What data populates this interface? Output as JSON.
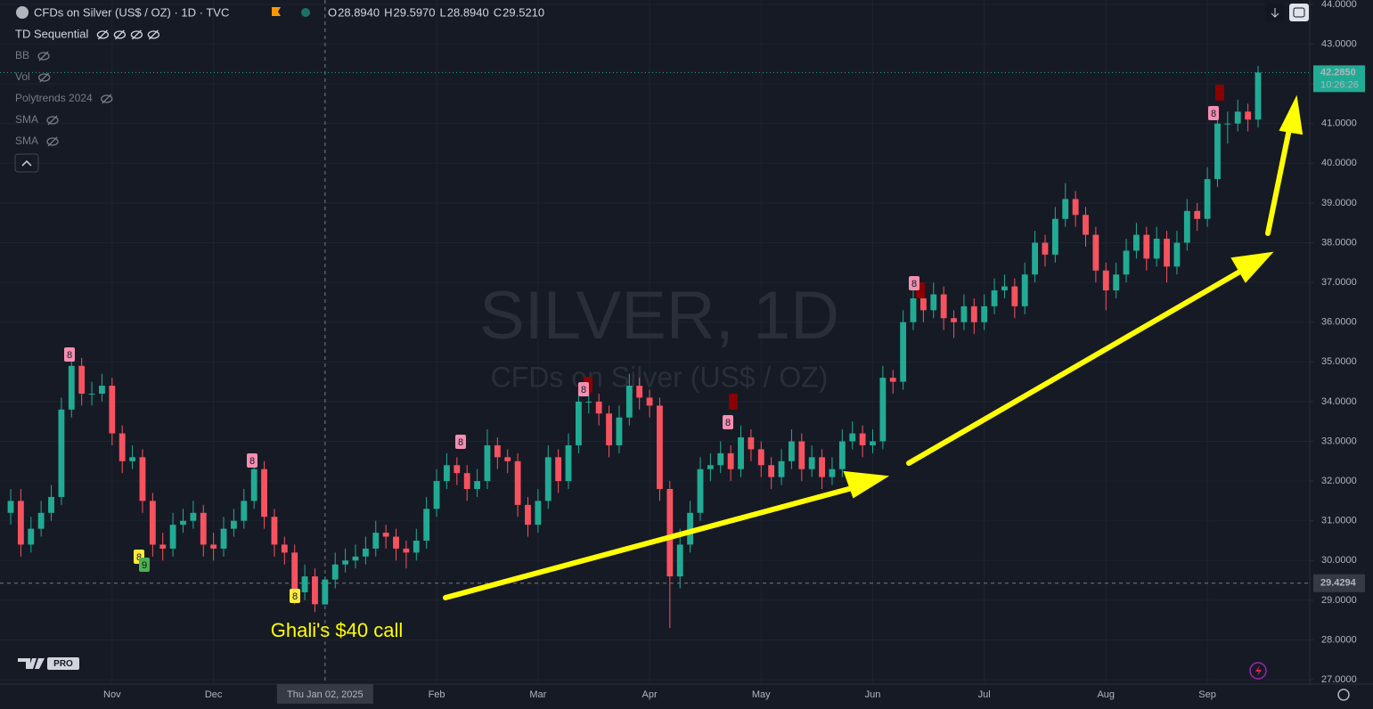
{
  "header": {
    "title": "CFDs on Silver (US$ / OZ) · 1D · TVC",
    "ohlc": [
      {
        "key": "O",
        "value": "28.8940"
      },
      {
        "key": "H",
        "value": "29.5970"
      },
      {
        "key": "L",
        "value": "28.8940"
      },
      {
        "key": "C",
        "value": "29.5210"
      }
    ],
    "indicators": [
      "TD Sequential",
      "BB",
      "Vol",
      "Polytrends 2024",
      "SMA",
      "SMA"
    ],
    "logo": "PRO"
  },
  "chart_data": {
    "type": "candlestick",
    "watermark": "SILVER, 1D",
    "watermark_subtitle": "CFDs on Silver (US$ / OZ)",
    "annotation": "Ghali's $40 call",
    "up_color": "#22ab94",
    "down_color": "#f7525f",
    "grid": true,
    "categories": [
      null,
      null,
      null,
      null,
      null,
      null,
      null,
      null,
      null,
      null,
      "Nov",
      null,
      null,
      null,
      null,
      null,
      null,
      null,
      null,
      null,
      "Dec",
      null,
      null,
      null,
      null,
      null,
      null,
      null,
      null,
      null,
      null,
      "Thu Jan 02, 2025",
      null,
      null,
      null,
      null,
      null,
      null,
      null,
      null,
      null,
      null,
      "Feb",
      null,
      null,
      null,
      null,
      null,
      null,
      null,
      null,
      null,
      "Mar",
      null,
      null,
      null,
      null,
      null,
      null,
      null,
      null,
      null,
      null,
      "Apr",
      null,
      null,
      null,
      null,
      null,
      null,
      null,
      null,
      null,
      null,
      "May",
      null,
      null,
      null,
      null,
      null,
      null,
      null,
      null,
      null,
      null,
      "Jun",
      null,
      null,
      null,
      null,
      null,
      null,
      null,
      null,
      null,
      null,
      "Jul",
      null,
      null,
      null,
      null,
      null,
      null,
      null,
      null,
      null,
      null,
      null,
      "Aug",
      null,
      null,
      null,
      null,
      null,
      null,
      null,
      null,
      null,
      "Sep",
      null,
      null,
      null,
      null,
      null
    ],
    "open": [
      31.2,
      31.5,
      30.4,
      30.8,
      31.2,
      31.6,
      33.8,
      34.9,
      34.2,
      34.2,
      34.4,
      33.2,
      32.5,
      32.6,
      31.5,
      30.4,
      30.3,
      30.9,
      31.0,
      31.2,
      30.4,
      30.3,
      30.8,
      31.0,
      31.5,
      32.3,
      31.1,
      30.4,
      30.2,
      29.2,
      29.6,
      28.894,
      29.521,
      29.9,
      30.0,
      30.1,
      30.3,
      30.7,
      30.6,
      30.3,
      30.2,
      30.5,
      31.3,
      32.0,
      32.4,
      32.2,
      31.8,
      32.0,
      32.9,
      32.6,
      32.5,
      31.4,
      30.9,
      31.5,
      32.6,
      32.0,
      32.9,
      34.0,
      34.0,
      33.7,
      32.9,
      33.6,
      34.4,
      34.1,
      33.9,
      31.8,
      29.6,
      30.4,
      31.2,
      32.3,
      32.4,
      32.7,
      32.3,
      33.1,
      32.8,
      32.4,
      32.1,
      32.5,
      33.0,
      32.3,
      32.6,
      32.1,
      32.3,
      33.0,
      33.2,
      32.9,
      33.0,
      34.6,
      34.5,
      36.0,
      36.6,
      36.3,
      36.7,
      36.1,
      36.0,
      36.4,
      36.0,
      36.4,
      36.8,
      36.9,
      36.4,
      37.2,
      38.0,
      37.7,
      38.6,
      39.1,
      38.7,
      38.2,
      37.3,
      36.8,
      37.2,
      37.8,
      38.2,
      37.6,
      38.1,
      37.4,
      38.0,
      38.8,
      38.6,
      39.6,
      41.0,
      41.0,
      41.3,
      41.1
    ],
    "high": [
      31.8,
      31.8,
      31.1,
      31.5,
      31.9,
      34.1,
      35.0,
      35.1,
      34.5,
      34.7,
      34.6,
      33.4,
      32.9,
      32.8,
      31.7,
      30.7,
      31.2,
      31.3,
      31.5,
      31.4,
      30.7,
      31.1,
      31.3,
      31.8,
      32.6,
      32.5,
      31.3,
      30.6,
      30.4,
      29.9,
      29.8,
      29.597,
      30.2,
      30.3,
      30.4,
      30.6,
      31.0,
      30.9,
      30.8,
      30.5,
      30.8,
      31.6,
      32.3,
      32.7,
      32.6,
      32.4,
      32.3,
      33.3,
      33.1,
      32.8,
      32.7,
      31.6,
      31.8,
      32.9,
      32.8,
      33.2,
      34.3,
      34.3,
      34.2,
      33.9,
      33.9,
      34.7,
      34.6,
      34.3,
      34.1,
      32.0,
      30.8,
      31.5,
      32.6,
      32.7,
      33.0,
      32.9,
      33.4,
      33.3,
      33.0,
      32.6,
      32.8,
      33.3,
      33.2,
      32.9,
      32.8,
      32.6,
      33.3,
      33.5,
      33.4,
      33.3,
      34.9,
      34.8,
      36.3,
      36.9,
      36.8,
      37.0,
      36.9,
      36.3,
      36.7,
      36.6,
      36.7,
      37.1,
      37.2,
      37.1,
      37.5,
      38.3,
      38.2,
      38.9,
      39.5,
      39.3,
      38.9,
      38.4,
      37.5,
      37.5,
      38.1,
      38.5,
      38.4,
      38.4,
      38.3,
      38.3,
      39.1,
      39.0,
      39.9,
      41.3,
      41.3,
      41.6,
      41.5,
      42.45
    ],
    "low": [
      30.9,
      30.1,
      30.2,
      30.6,
      31.0,
      31.4,
      33.6,
      33.9,
      33.9,
      34.0,
      32.9,
      32.2,
      32.3,
      31.2,
      30.1,
      30.0,
      30.1,
      30.7,
      30.8,
      30.1,
      30.0,
      30.1,
      30.6,
      30.8,
      31.3,
      30.8,
      30.1,
      29.9,
      28.9,
      29.0,
      28.7,
      28.894,
      29.3,
      29.7,
      29.8,
      29.9,
      30.1,
      30.3,
      30.0,
      29.8,
      30.0,
      30.3,
      31.1,
      31.8,
      31.9,
      31.5,
      31.6,
      31.8,
      32.3,
      32.2,
      31.1,
      30.6,
      30.7,
      31.3,
      31.7,
      31.8,
      32.7,
      33.7,
      33.4,
      32.6,
      32.7,
      33.4,
      33.8,
      33.6,
      31.5,
      28.3,
      29.3,
      30.2,
      31.0,
      32.0,
      32.2,
      32.0,
      32.1,
      32.5,
      32.1,
      31.8,
      31.9,
      32.3,
      32.0,
      32.1,
      31.8,
      31.9,
      32.1,
      32.8,
      32.6,
      32.7,
      32.8,
      34.2,
      34.3,
      35.8,
      36.0,
      36.1,
      35.8,
      35.6,
      35.8,
      35.7,
      35.8,
      36.2,
      36.6,
      36.1,
      36.2,
      37.0,
      37.4,
      37.5,
      38.4,
      38.4,
      37.9,
      37.0,
      36.3,
      36.6,
      37.0,
      37.6,
      37.3,
      37.4,
      37.0,
      37.2,
      37.8,
      38.3,
      38.4,
      39.4,
      40.5,
      40.8,
      40.8,
      40.9
    ],
    "close": [
      31.5,
      30.4,
      30.8,
      31.2,
      31.6,
      33.8,
      34.9,
      34.2,
      34.2,
      34.4,
      33.2,
      32.5,
      32.6,
      31.5,
      30.4,
      30.3,
      30.9,
      31.0,
      31.2,
      30.4,
      30.3,
      30.8,
      31.0,
      31.5,
      32.3,
      31.1,
      30.4,
      30.2,
      29.2,
      29.6,
      28.9,
      29.521,
      29.9,
      30.0,
      30.1,
      30.3,
      30.7,
      30.6,
      30.3,
      30.2,
      30.5,
      31.3,
      32.0,
      32.4,
      32.2,
      31.8,
      32.0,
      32.9,
      32.6,
      32.5,
      31.4,
      30.9,
      31.5,
      32.6,
      32.0,
      32.9,
      34.0,
      34.0,
      33.7,
      32.9,
      33.6,
      34.4,
      34.1,
      33.9,
      31.8,
      29.6,
      30.4,
      31.2,
      32.3,
      32.4,
      32.7,
      32.3,
      33.1,
      32.8,
      32.4,
      32.1,
      32.5,
      33.0,
      32.3,
      32.6,
      32.1,
      32.3,
      33.0,
      33.2,
      32.9,
      33.0,
      34.6,
      34.5,
      36.0,
      36.6,
      36.3,
      36.7,
      36.1,
      36.0,
      36.4,
      36.0,
      36.4,
      36.8,
      36.9,
      36.4,
      37.2,
      38.0,
      37.7,
      38.6,
      39.1,
      38.7,
      38.2,
      37.3,
      36.8,
      37.2,
      37.8,
      38.2,
      37.6,
      38.1,
      37.4,
      38.0,
      38.8,
      38.6,
      39.6,
      41.0,
      41.0,
      41.3,
      41.1,
      42.285
    ],
    "td_labels": [
      "8",
      "8",
      "9",
      "8",
      "8",
      "8",
      "8",
      "8",
      "8",
      "8"
    ],
    "last_price": {
      "value": 42.285,
      "label": "42.2850"
    },
    "countdown": "10:26:26",
    "crosshair_price": {
      "value": 29.4294,
      "label": "29.4294"
    },
    "ylim": [
      26.89,
      44.11
    ],
    "yticks": [
      {
        "value": 27,
        "label": "27.0000"
      },
      {
        "value": 28,
        "label": "28.0000"
      },
      {
        "value": 29,
        "label": "29.0000"
      },
      {
        "value": 30,
        "label": "30.0000"
      },
      {
        "value": 31,
        "label": "31.0000"
      },
      {
        "value": 32,
        "label": "32.0000"
      },
      {
        "value": 33,
        "label": "33.0000"
      },
      {
        "value": 34,
        "label": "34.0000"
      },
      {
        "value": 35,
        "label": "35.0000"
      },
      {
        "value": 36,
        "label": "36.0000"
      },
      {
        "value": 37,
        "label": "37.0000"
      },
      {
        "value": 38,
        "label": "38.0000"
      },
      {
        "value": 39,
        "label": "39.0000"
      },
      {
        "value": 40,
        "label": "40.0000"
      },
      {
        "value": 41,
        "label": "41.0000"
      },
      {
        "value": 42,
        "label": "42.0000"
      },
      {
        "value": 43,
        "label": "43.0000"
      },
      {
        "value": 44,
        "label": "44.0000"
      }
    ]
  }
}
